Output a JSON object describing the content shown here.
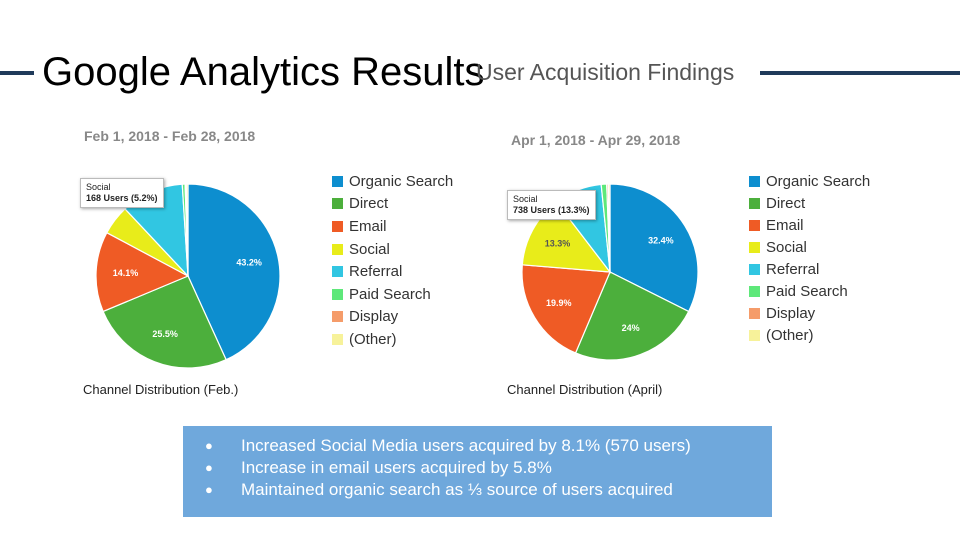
{
  "slide": {
    "title": "Google Analytics Results",
    "subtitle": "User Acquisition Findings",
    "accent_color": "#1f3a5a"
  },
  "chart_data": [
    {
      "type": "pie",
      "title": "Feb 1, 2018 - Feb 28, 2018",
      "caption": "Channel Distribution (Feb.)",
      "categories": [
        "Organic Search",
        "Direct",
        "Email",
        "Social",
        "Referral",
        "Paid Search",
        "Display",
        "(Other)"
      ],
      "values": [
        43.2,
        25.5,
        14.1,
        5.2,
        11.0,
        0.5,
        0.2,
        0.3
      ],
      "value_labels": [
        "43.2%",
        "25.5%",
        "14.1%",
        "",
        "",
        "",
        "",
        ""
      ],
      "colors": [
        "#0d8ecf",
        "#4caf3c",
        "#ef5b25",
        "#e8ec1a",
        "#31c6e2",
        "#5ee87a",
        "#f59c6a",
        "#f7f29a"
      ],
      "tooltip": {
        "category": "Social",
        "value": "168 Users (5.2%)"
      },
      "legend": "right"
    },
    {
      "type": "pie",
      "title": "Apr 1, 2018 - Apr 29, 2018",
      "caption": "Channel Distribution (April)",
      "categories": [
        "Organic Search",
        "Direct",
        "Email",
        "Social",
        "Referral",
        "Paid Search",
        "Display",
        "(Other)"
      ],
      "values": [
        32.4,
        24.0,
        19.9,
        13.3,
        8.8,
        1.0,
        0.3,
        0.3
      ],
      "value_labels": [
        "32.4%",
        "24%",
        "19.9%",
        "13.3%",
        "",
        "",
        "",
        ""
      ],
      "colors": [
        "#0d8ecf",
        "#4caf3c",
        "#ef5b25",
        "#e8ec1a",
        "#31c6e2",
        "#5ee87a",
        "#f59c6a",
        "#f7f29a"
      ],
      "tooltip": {
        "category": "Social",
        "value": "738 Users (13.3%)"
      },
      "legend": "right"
    }
  ],
  "findings": {
    "bullet": "●",
    "items": [
      "Increased Social Media users acquired by 8.1% (570 users)",
      "Increase in email users acquired by 5.8%",
      "Maintained organic search as ⅓ source of users acquired"
    ],
    "background_color": "#6fa8dc"
  }
}
